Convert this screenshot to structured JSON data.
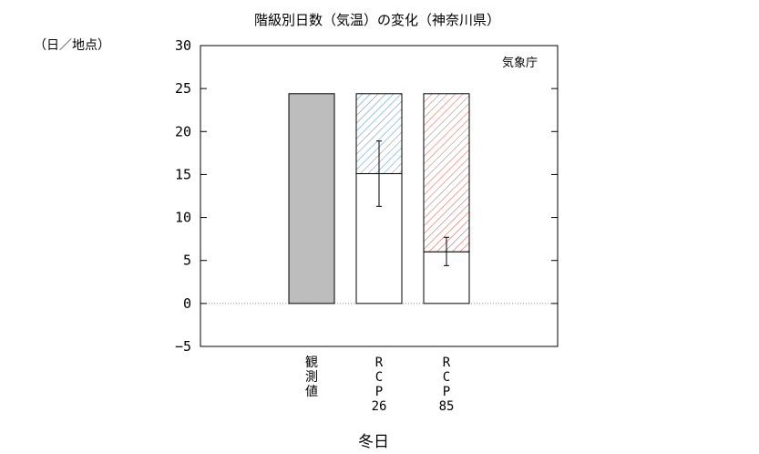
{
  "chart_data": {
    "type": "bar",
    "title": "階級別日数（気温）の変化（神奈川県）",
    "unit": "（日／地点）",
    "source": "気象庁",
    "xlabel": "冬日",
    "ylim": [
      -5,
      30
    ],
    "yticks": [
      -5,
      0,
      5,
      10,
      15,
      20,
      25,
      30
    ],
    "grid": false,
    "categories": [
      {
        "name": "観測値",
        "label_lines": [
          "観",
          "測",
          "値"
        ]
      },
      {
        "name": "RCP26",
        "label_lines": [
          "R",
          "C",
          "P",
          "26"
        ]
      },
      {
        "name": "RCP85",
        "label_lines": [
          "R",
          "C",
          "P",
          "85"
        ]
      }
    ],
    "bars": [
      {
        "category": "観測値",
        "value": 24.4,
        "style": "solid",
        "color": "#bdbdbd"
      },
      {
        "category": "RCP26",
        "baseline": 24.4,
        "value": 15.1,
        "error_low": 11.3,
        "error_high": 18.9,
        "hatch_color": "#4a90b8"
      },
      {
        "category": "RCP85",
        "baseline": 24.4,
        "value": 6.0,
        "error_low": 4.4,
        "error_high": 7.7,
        "hatch_color": "#d0564a"
      }
    ]
  }
}
